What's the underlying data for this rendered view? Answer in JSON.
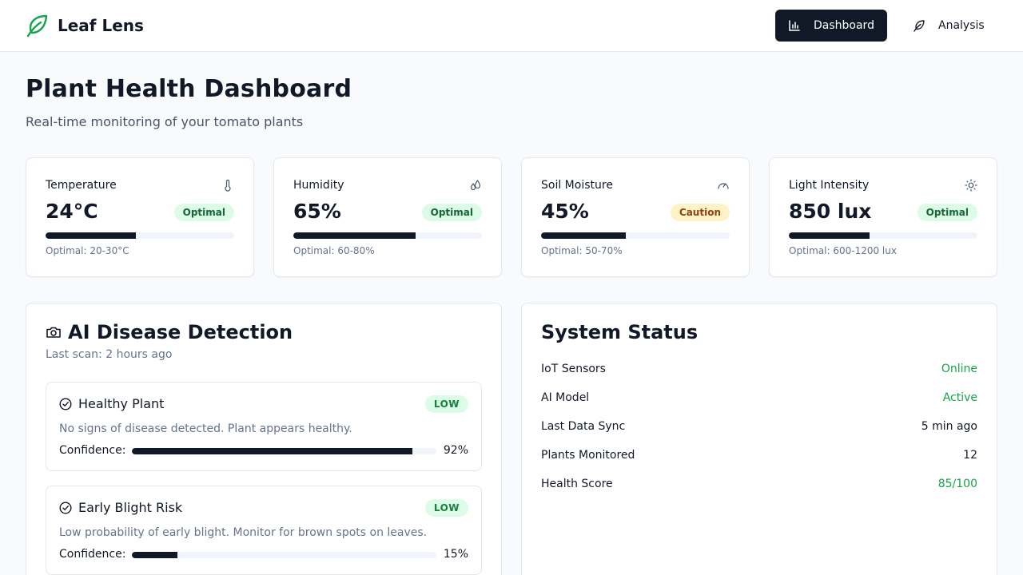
{
  "app": {
    "name": "Leaf Lens"
  },
  "nav": {
    "dashboard_label": "Dashboard",
    "analysis_label": "Analysis",
    "active": "Dashboard"
  },
  "page": {
    "title": "Plant Health Dashboard",
    "subtitle": "Real-time monitoring of your tomato plants"
  },
  "metrics": [
    {
      "label": "Temperature",
      "icon": "thermometer-icon",
      "value": "24°C",
      "status": "Optimal",
      "progress_percent": 48,
      "range": "Optimal: 20-30°C"
    },
    {
      "label": "Humidity",
      "icon": "droplets-icon",
      "value": "65%",
      "status": "Optimal",
      "progress_percent": 65,
      "range": "Optimal: 60-80%"
    },
    {
      "label": "Soil Moisture",
      "icon": "gauge-icon",
      "value": "45%",
      "status": "Caution",
      "progress_percent": 45,
      "range": "Optimal: 50-70%"
    },
    {
      "label": "Light Intensity",
      "icon": "sun-icon",
      "value": "850 lux",
      "status": "Optimal",
      "progress_percent": 43,
      "range": "Optimal: 600-1200 lux"
    }
  ],
  "detection": {
    "title": "AI Disease Detection",
    "icon": "camera-icon",
    "last_scan": "Last scan: 2 hours ago",
    "results": [
      {
        "title": "Healthy Plant",
        "risk": "LOW",
        "description": "No signs of disease detected. Plant appears healthy.",
        "confidence_label": "Confidence:",
        "confidence_percent": 92,
        "confidence_text": "92%"
      },
      {
        "title": "Early Blight Risk",
        "risk": "LOW",
        "description": "Low probability of early blight. Monitor for brown spots on leaves.",
        "confidence_label": "Confidence:",
        "confidence_percent": 15,
        "confidence_text": "15%"
      }
    ]
  },
  "system_status": {
    "title": "System Status",
    "rows": [
      {
        "label": "IoT Sensors",
        "value": "Online",
        "tone": "green"
      },
      {
        "label": "AI Model",
        "value": "Active",
        "tone": "green"
      },
      {
        "label": "Last Data Sync",
        "value": "5 min ago",
        "tone": "dark"
      },
      {
        "label": "Plants Monitored",
        "value": "12",
        "tone": "dark"
      },
      {
        "label": "Health Score",
        "value": "85/100",
        "tone": "green"
      }
    ]
  },
  "colors": {
    "brand_green": "#16a34a",
    "primary_dark": "#111827",
    "optimal_bg": "#dcfce7",
    "caution_bg": "#fef3c7"
  }
}
